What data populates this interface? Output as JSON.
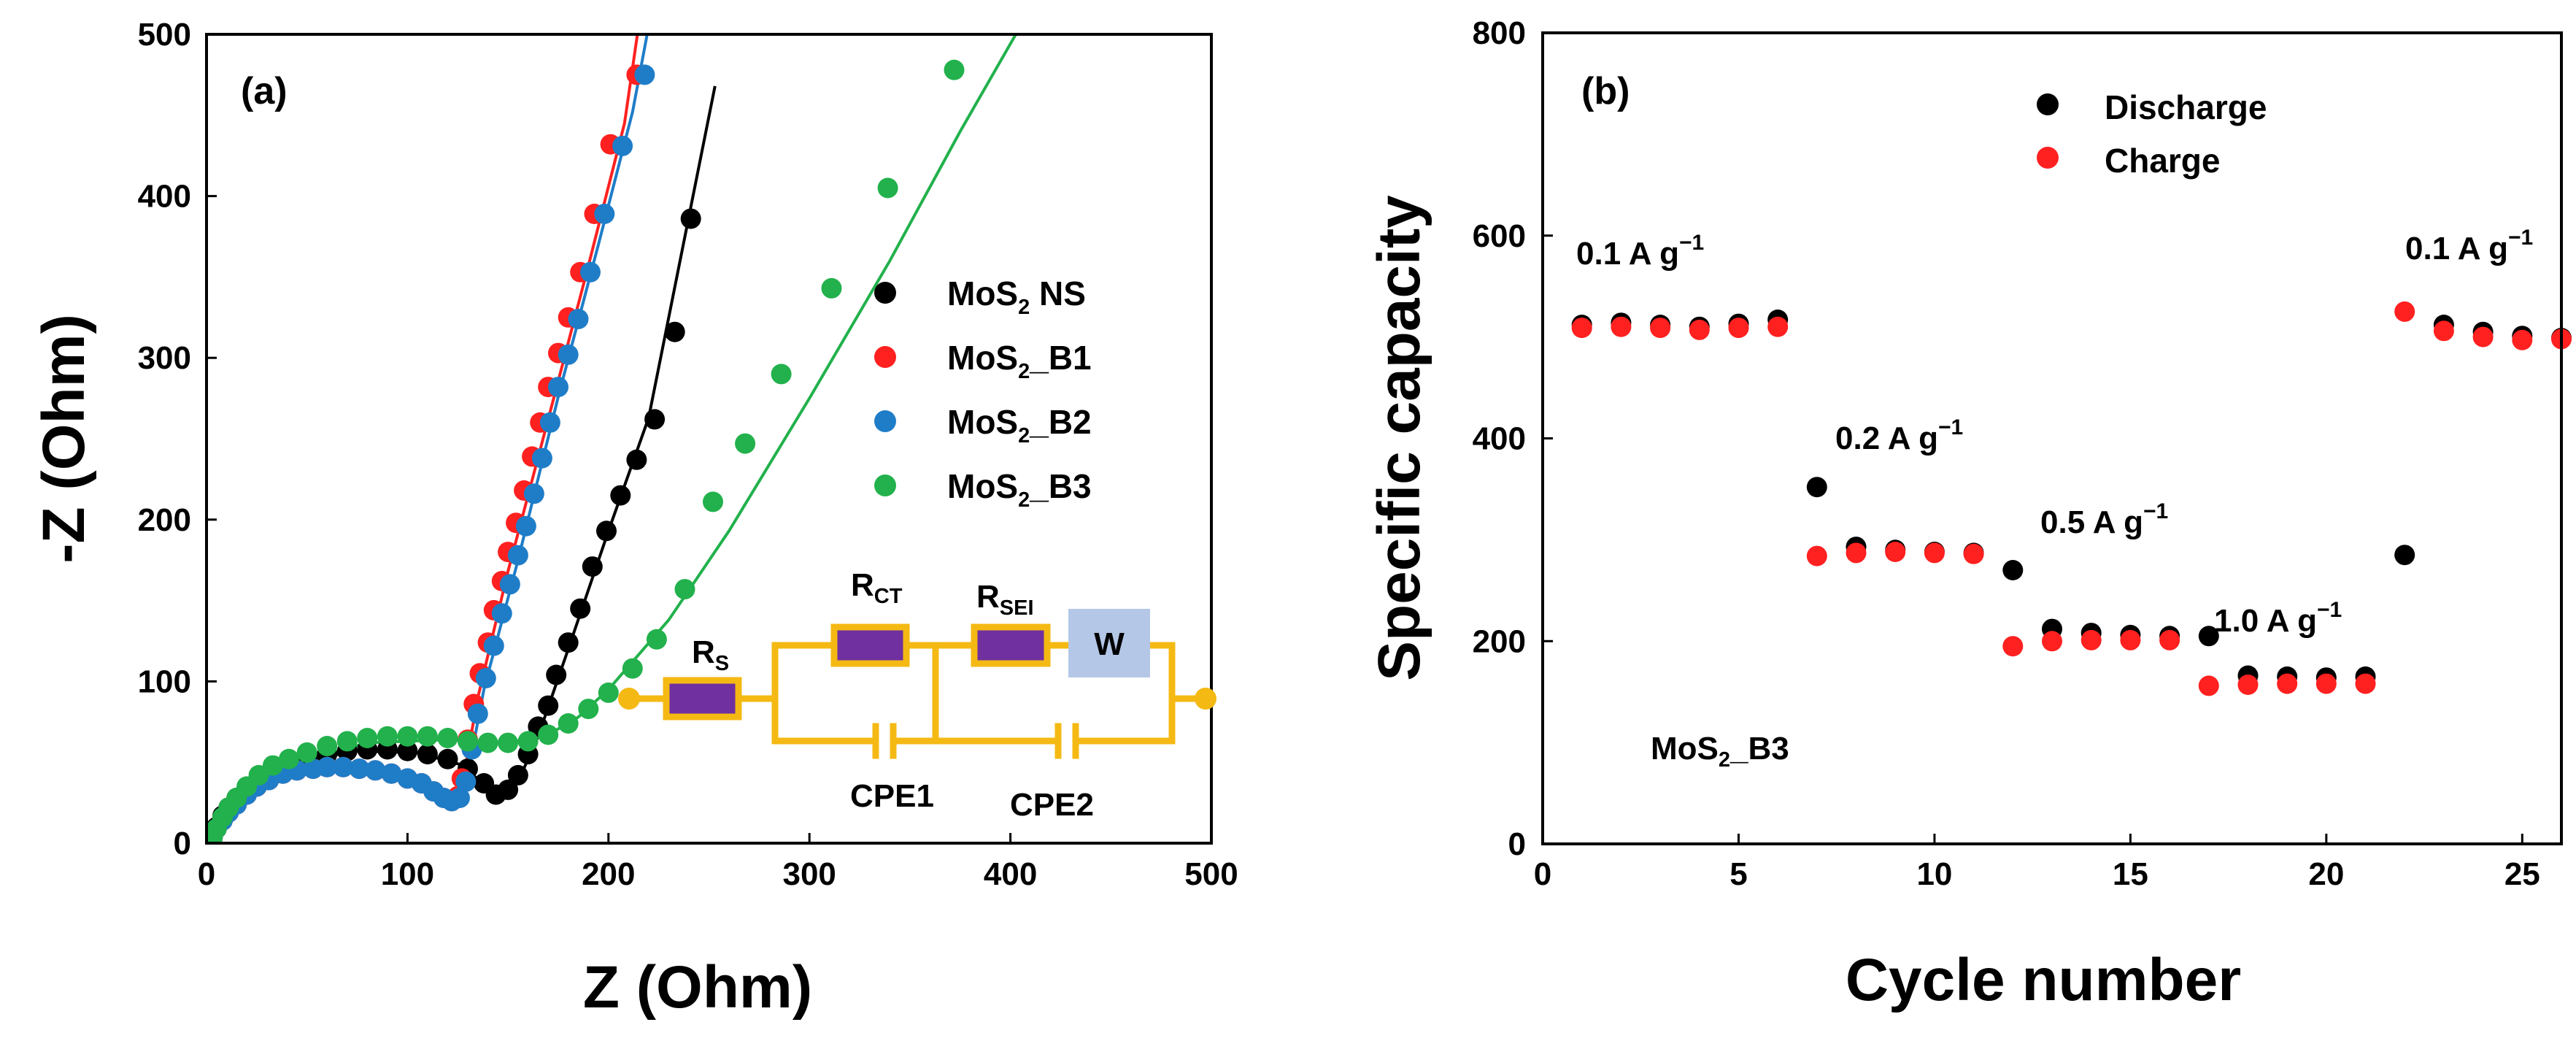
{
  "chart_data": [
    {
      "type": "scatter",
      "panel_label": "(a)",
      "xlabel": "Z (Ohm)",
      "ylabel": "-Z (Ohm)",
      "xlim": [
        0,
        500
      ],
      "ylim": [
        0,
        500
      ],
      "xticks": [
        "0",
        "100",
        "200",
        "300",
        "400",
        "500"
      ],
      "yticks": [
        "0",
        "100",
        "200",
        "300",
        "400",
        "500"
      ],
      "legend_position": "top-right",
      "series": [
        {
          "name": "MoS₂ NS",
          "legend_base": "MoS",
          "legend_sub": "2",
          "legend_suffix": " NS",
          "color": "#000000",
          "points": [
            [
              3,
              4
            ],
            [
              5,
              10
            ],
            [
              8,
              17
            ],
            [
              11,
              22
            ],
            [
              15,
              28
            ],
            [
              20,
              34
            ],
            [
              26,
              40
            ],
            [
              33,
              45
            ],
            [
              41,
              49
            ],
            [
              50,
              53
            ],
            [
              60,
              55
            ],
            [
              70,
              57
            ],
            [
              80,
              58
            ],
            [
              90,
              58
            ],
            [
              100,
              57
            ],
            [
              110,
              55
            ],
            [
              120,
              52
            ],
            [
              130,
              46
            ],
            [
              138,
              37
            ],
            [
              144,
              30
            ],
            [
              150,
              33
            ],
            [
              155,
              42
            ],
            [
              160,
              55
            ],
            [
              165,
              72
            ],
            [
              170,
              85
            ],
            [
              174,
              104
            ],
            [
              180,
              124
            ],
            [
              186,
              145
            ],
            [
              192,
              171
            ],
            [
              199,
              193
            ],
            [
              206,
              215
            ],
            [
              214,
              237
            ],
            [
              223,
              262
            ],
            [
              233,
              316
            ],
            [
              241,
              386
            ]
          ],
          "fit": [
            [
              3,
              2
            ],
            [
              20,
              30
            ],
            [
              45,
              50
            ],
            [
              75,
              57
            ],
            [
              105,
              56
            ],
            [
              128,
              48
            ],
            [
              140,
              33
            ],
            [
              147,
              30
            ],
            [
              155,
              38
            ],
            [
              165,
              66
            ],
            [
              180,
              120
            ],
            [
              200,
              193
            ],
            [
              220,
              263
            ],
            [
              253,
              468
            ]
          ]
        },
        {
          "name": "MoS₂_B1",
          "legend_base": "MoS",
          "legend_sub": "2",
          "legend_suffix": "_B1",
          "color": "#ff2020",
          "points": [
            [
              3,
              4
            ],
            [
              5,
              9
            ],
            [
              8,
              14
            ],
            [
              11,
              19
            ],
            [
              15,
              24
            ],
            [
              20,
              30
            ],
            [
              25,
              35
            ],
            [
              31,
              39
            ],
            [
              38,
              43
            ],
            [
              45,
              45
            ],
            [
              53,
              46
            ],
            [
              60,
              47
            ],
            [
              68,
              47
            ],
            [
              76,
              46
            ],
            [
              84,
              45
            ],
            [
              92,
              43
            ],
            [
              100,
              40
            ],
            [
              107,
              37
            ],
            [
              113,
              32
            ],
            [
              118,
              28
            ],
            [
              122,
              26
            ],
            [
              125,
              29
            ],
            [
              127,
              40
            ],
            [
              130,
              64
            ],
            [
              133,
              86
            ],
            [
              136,
              105
            ],
            [
              140,
              124
            ],
            [
              143,
              144
            ],
            [
              147,
              162
            ],
            [
              150,
              180
            ],
            [
              154,
              198
            ],
            [
              158,
              218
            ],
            [
              162,
              239
            ],
            [
              166,
              260
            ],
            [
              170,
              282
            ],
            [
              175,
              303
            ],
            [
              180,
              325
            ],
            [
              186,
              353
            ],
            [
              193,
              389
            ],
            [
              201,
              432
            ],
            [
              214,
              475
            ]
          ],
          "fit": [
            [
              3,
              2
            ],
            [
              25,
              34
            ],
            [
              60,
              47
            ],
            [
              100,
              40
            ],
            [
              118,
              28
            ],
            [
              123,
              26
            ],
            [
              127,
              35
            ],
            [
              135,
              90
            ],
            [
              150,
              168
            ],
            [
              170,
              262
            ],
            [
              190,
              357
            ],
            [
              208,
              445
            ],
            [
              215,
              505
            ]
          ]
        },
        {
          "name": "MoS₂_B2",
          "legend_base": "MoS",
          "legend_sub": "2",
          "legend_suffix": "_B2",
          "color": "#1f7dc8",
          "points": [
            [
              3,
              4
            ],
            [
              5,
              9
            ],
            [
              8,
              14
            ],
            [
              11,
              19
            ],
            [
              15,
              24
            ],
            [
              20,
              30
            ],
            [
              25,
              35
            ],
            [
              31,
              39
            ],
            [
              38,
              43
            ],
            [
              45,
              45
            ],
            [
              53,
              46
            ],
            [
              60,
              47
            ],
            [
              68,
              47
            ],
            [
              76,
              46
            ],
            [
              84,
              45
            ],
            [
              92,
              43
            ],
            [
              100,
              40
            ],
            [
              107,
              37
            ],
            [
              113,
              32
            ],
            [
              118,
              28
            ],
            [
              122,
              26
            ],
            [
              126,
              28
            ],
            [
              129,
              38
            ],
            [
              132,
              58
            ],
            [
              135,
              80
            ],
            [
              139,
              102
            ],
            [
              143,
              122
            ],
            [
              147,
              142
            ],
            [
              151,
              160
            ],
            [
              155,
              178
            ],
            [
              159,
              196
            ],
            [
              163,
              216
            ],
            [
              167,
              238
            ],
            [
              171,
              260
            ],
            [
              175,
              282
            ],
            [
              180,
              302
            ],
            [
              185,
              324
            ],
            [
              191,
              353
            ],
            [
              198,
              389
            ],
            [
              207,
              431
            ],
            [
              218,
              475
            ]
          ],
          "fit": [
            [
              3,
              2
            ],
            [
              25,
              34
            ],
            [
              60,
              47
            ],
            [
              100,
              40
            ],
            [
              118,
              28
            ],
            [
              123,
              26
            ],
            [
              129,
              36
            ],
            [
              138,
              95
            ],
            [
              155,
              175
            ],
            [
              175,
              276
            ],
            [
              195,
              370
            ],
            [
              212,
              452
            ],
            [
              220,
              505
            ]
          ]
        },
        {
          "name": "MoS₂_B3",
          "legend_base": "MoS",
          "legend_sub": "2",
          "legend_suffix": "_B3",
          "color": "#22b14c",
          "points": [
            [
              3,
              3
            ],
            [
              5,
              9
            ],
            [
              8,
              16
            ],
            [
              11,
              22
            ],
            [
              15,
              28
            ],
            [
              20,
              35
            ],
            [
              26,
              42
            ],
            [
              33,
              48
            ],
            [
              41,
              52
            ],
            [
              50,
              56
            ],
            [
              60,
              60
            ],
            [
              70,
              63
            ],
            [
              80,
              65
            ],
            [
              90,
              66
            ],
            [
              100,
              66
            ],
            [
              110,
              66
            ],
            [
              120,
              65
            ],
            [
              130,
              63
            ],
            [
              140,
              62
            ],
            [
              150,
              62
            ],
            [
              160,
              63
            ],
            [
              170,
              67
            ],
            [
              180,
              74
            ],
            [
              190,
              83
            ],
            [
              200,
              93
            ],
            [
              212,
              108
            ],
            [
              224,
              126
            ],
            [
              238,
              157
            ],
            [
              252,
              211
            ],
            [
              268,
              247
            ],
            [
              286,
              290
            ],
            [
              311,
              343
            ],
            [
              339,
              405
            ],
            [
              372,
              478
            ]
          ],
          "fit": [
            [
              3,
              2
            ],
            [
              20,
              33
            ],
            [
              45,
              50
            ],
            [
              80,
              62
            ],
            [
              120,
              64
            ],
            [
              150,
              62
            ],
            [
              170,
              67
            ],
            [
              185,
              78
            ],
            [
              200,
              95
            ],
            [
              230,
              138
            ],
            [
              260,
              193
            ],
            [
              300,
              275
            ],
            [
              340,
              360
            ],
            [
              375,
              440
            ],
            [
              405,
              505
            ]
          ]
        }
      ]
    },
    {
      "type": "scatter",
      "panel_label": "(b)",
      "xlabel": "Cycle number",
      "ylabel": "Specific capacity",
      "xlim": [
        0,
        26
      ],
      "ylim": [
        0,
        800
      ],
      "xticks": [
        "0",
        "5",
        "10",
        "15",
        "20",
        "25"
      ],
      "yticks": [
        "0",
        "200",
        "400",
        "600",
        "800"
      ],
      "legend_position": "top",
      "sample_label": {
        "base": "MoS",
        "sub": "2",
        "suffix": "_B3"
      },
      "rate_labels": [
        {
          "text": "0.1 A g",
          "sup": "−1"
        },
        {
          "text": "0.2 A g",
          "sup": "−1"
        },
        {
          "text": "0.5 A g",
          "sup": "−1"
        },
        {
          "text": "1.0 A g",
          "sup": "−1"
        },
        {
          "text": "0.1 A g",
          "sup": "−1"
        }
      ],
      "series": [
        {
          "name": "Discharge",
          "color": "#000000",
          "x": [
            1,
            2,
            3,
            4,
            5,
            6,
            7,
            8,
            9,
            10,
            11,
            12,
            13,
            14,
            15,
            16,
            17,
            18,
            19,
            20,
            21,
            22,
            23,
            24,
            25,
            26
          ],
          "values": [
            512,
            514,
            512,
            510,
            513,
            517,
            352,
            293,
            290,
            288,
            287,
            270,
            212,
            208,
            206,
            205,
            205,
            166,
            165,
            164,
            165,
            285,
            512,
            505,
            501,
            499
          ]
        },
        {
          "name": "Charge",
          "color": "#ff2020",
          "x": [
            1,
            2,
            3,
            4,
            5,
            6,
            7,
            8,
            9,
            10,
            11,
            12,
            13,
            14,
            15,
            16,
            17,
            18,
            19,
            20,
            21,
            22,
            23,
            24,
            25,
            26
          ],
          "values": [
            509,
            510,
            509,
            507,
            509,
            510,
            284,
            287,
            288,
            287,
            286,
            195,
            200,
            201,
            201,
            201,
            156,
            157,
            158,
            158,
            158,
            525,
            506,
            500,
            497,
            498
          ]
        }
      ]
    }
  ],
  "inset_circuit": {
    "components": [
      "R",
      "R",
      "R",
      "W"
    ],
    "labels": [
      {
        "base": "R",
        "sub": "S"
      },
      {
        "base": "R",
        "sub": "CT"
      },
      {
        "base": "R",
        "sub": "SEI"
      },
      {
        "base": "W",
        "sub": ""
      }
    ],
    "cpe_labels": [
      "CPE1",
      "CPE2"
    ],
    "wire_color": "#f5b914",
    "resistor_color": "#7030a0",
    "warburg_color": "#b4c7e7"
  }
}
